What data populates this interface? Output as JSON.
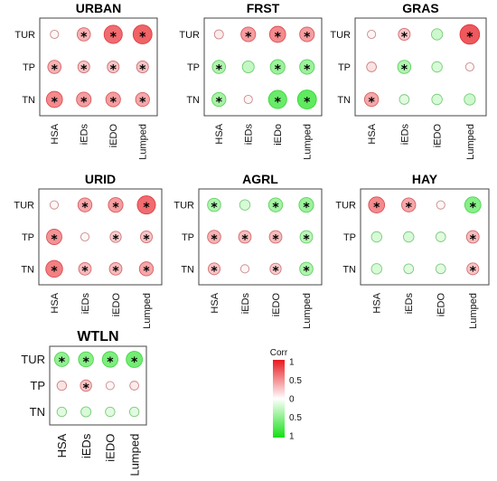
{
  "chart_data": [
    {
      "type": "correlogram",
      "title": "URBAN",
      "rows": [
        "TUR",
        "TP",
        "TN"
      ],
      "columns": [
        "HSA",
        "iEDs",
        "iEDO",
        "Lumped"
      ],
      "values": [
        [
          0.05,
          0.4,
          0.75,
          0.8
        ],
        [
          0.4,
          0.3,
          0.3,
          0.3
        ],
        [
          0.6,
          0.5,
          0.5,
          0.45
        ]
      ],
      "significant": [
        [
          false,
          true,
          true,
          true
        ],
        [
          true,
          true,
          true,
          true
        ],
        [
          true,
          true,
          true,
          true
        ]
      ]
    },
    {
      "type": "correlogram",
      "title": "FRST",
      "rows": [
        "TUR",
        "TP",
        "TN"
      ],
      "columns": [
        "HSA",
        "iEDs",
        "iEDo",
        "Lumped"
      ],
      "values": [
        [
          0.1,
          0.5,
          0.6,
          0.5
        ],
        [
          -0.4,
          -0.3,
          -0.5,
          -0.5
        ],
        [
          -0.45,
          0.05,
          -0.75,
          -0.8
        ]
      ],
      "significant": [
        [
          false,
          true,
          true,
          true
        ],
        [
          true,
          false,
          true,
          true
        ],
        [
          true,
          false,
          true,
          true
        ]
      ]
    },
    {
      "type": "correlogram",
      "title": "GRAS",
      "rows": [
        "TUR",
        "TP",
        "TN"
      ],
      "columns": [
        "HSA",
        "iEDs",
        "iEDO",
        "Lumped"
      ],
      "values": [
        [
          0.05,
          0.3,
          -0.25,
          0.85
        ],
        [
          0.15,
          -0.4,
          -0.2,
          0.05
        ],
        [
          0.45,
          -0.15,
          -0.2,
          -0.25
        ]
      ],
      "significant": [
        [
          false,
          true,
          false,
          true
        ],
        [
          false,
          true,
          false,
          false
        ],
        [
          true,
          false,
          false,
          false
        ]
      ]
    },
    {
      "type": "correlogram",
      "title": "URID",
      "rows": [
        "TUR",
        "TP",
        "TN"
      ],
      "columns": [
        "HSA",
        "iEDs",
        "iEDO",
        "Lumped"
      ],
      "values": [
        [
          0.05,
          0.45,
          0.5,
          0.75
        ],
        [
          0.55,
          0.05,
          0.25,
          0.3
        ],
        [
          0.65,
          0.35,
          0.35,
          0.45
        ]
      ],
      "significant": [
        [
          false,
          true,
          true,
          true
        ],
        [
          true,
          false,
          true,
          true
        ],
        [
          true,
          true,
          true,
          true
        ]
      ]
    },
    {
      "type": "correlogram",
      "title": "AGRL",
      "rows": [
        "TUR",
        "TP",
        "TN"
      ],
      "columns": [
        "HSA",
        "iEDs",
        "iEDO",
        "Lumped"
      ],
      "values": [
        [
          -0.4,
          -0.2,
          -0.45,
          -0.5
        ],
        [
          0.4,
          0.35,
          0.35,
          -0.35
        ],
        [
          0.3,
          0.05,
          0.25,
          -0.4
        ]
      ],
      "significant": [
        [
          true,
          false,
          true,
          true
        ],
        [
          true,
          true,
          true,
          true
        ],
        [
          true,
          false,
          true,
          true
        ]
      ]
    },
    {
      "type": "correlogram",
      "title": "HAY",
      "rows": [
        "TUR",
        "TP",
        "TN"
      ],
      "columns": [
        "HSA",
        "iEDs",
        "iEDO",
        "Lumped"
      ],
      "values": [
        [
          0.6,
          0.45,
          0.05,
          -0.6
        ],
        [
          -0.2,
          -0.2,
          -0.15,
          0.35
        ],
        [
          -0.2,
          -0.15,
          -0.15,
          0.3
        ]
      ],
      "significant": [
        [
          true,
          true,
          false,
          true
        ],
        [
          false,
          false,
          false,
          true
        ],
        [
          false,
          false,
          false,
          true
        ]
      ]
    },
    {
      "type": "correlogram",
      "title": "WTLN",
      "rows": [
        "TUR",
        "TP",
        "TN"
      ],
      "columns": [
        "HSA",
        "iEDs",
        "iEDO",
        "Lumped"
      ],
      "values": [
        [
          -0.55,
          -0.6,
          -0.65,
          -0.7
        ],
        [
          0.15,
          0.3,
          0.05,
          0.1
        ],
        [
          -0.15,
          -0.2,
          -0.15,
          -0.15
        ]
      ],
      "significant": [
        [
          true,
          true,
          true,
          true
        ],
        [
          false,
          true,
          false,
          false
        ],
        [
          false,
          false,
          false,
          false
        ]
      ]
    }
  ],
  "legend": {
    "title": "Corr",
    "ticks": [
      "1",
      "0.5",
      "0",
      "0.5",
      "1"
    ],
    "positive_color": "#e8191f",
    "negative_color": "#14e014",
    "neutral_color": "#ffffff"
  },
  "star_symbol": "*"
}
